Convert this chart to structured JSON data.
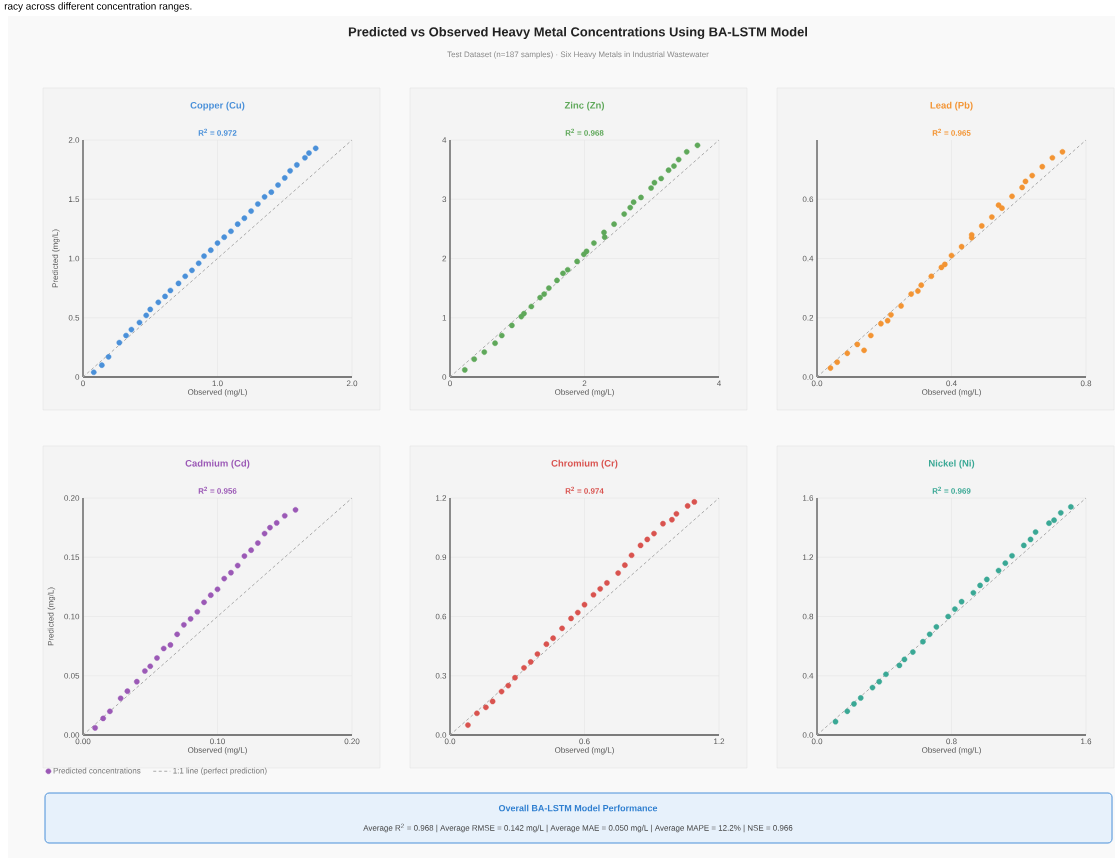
{
  "chart_data": [
    {
      "type": "scatter",
      "title": "Copper (Cu)",
      "subtitle": "R$^{2}$ = 0.972",
      "xlabel": "Observed (mg/L)",
      "ylabel": "Predicted (mg/L)",
      "grid": true,
      "xlim": [
        0,
        2
      ],
      "ylim": [
        0,
        2
      ],
      "xticks": [
        0,
        {
          "value": 1,
          "label": "1.0"
        },
        {
          "value": 2,
          "label": "2.0"
        }
      ],
      "yticks": [
        0,
        0.5,
        {
          "value": 1,
          "label": "1.0"
        },
        1.5,
        {
          "value": 2,
          "label": "2.0"
        }
      ],
      "annotations": [
        "racy across different concentration ranges.",
        "Predicted vs Observed Heavy Metal Concentrations Using BA-LSTM Model",
        "Test Dataset (n=187 samples) · Six Heavy Metals in Industrial Wastewater",
        "Overall BA-LSTM Model Performance",
        "Average R$^{2}$ = 0.968 | Average RMSE = 0.142 mg/L | Average MAE = 0.050 mg/L | Average MAPE = 12.2% | NSE = 0.966"
      ],
      "series": [
        {
          "type": "scatter",
          "marker": "circle",
          "color": "#4a90d9",
          "x": [
            0.08,
            0.14,
            0.19,
            0.27,
            0.32,
            0.36,
            0.42,
            0.47,
            0.5,
            0.56,
            0.61,
            0.65,
            0.71,
            0.76,
            0.81,
            0.86,
            0.9,
            0.95,
            1.0,
            1.05,
            1.1,
            1.15,
            1.2,
            1.25,
            1.3,
            1.35,
            1.4,
            1.45,
            1.5,
            1.54,
            1.59,
            1.65,
            1.68,
            1.73
          ],
          "values": [
            0.04,
            0.1,
            0.17,
            0.29,
            0.35,
            0.4,
            0.46,
            0.52,
            0.57,
            0.63,
            0.68,
            0.73,
            0.79,
            0.85,
            0.9,
            0.96,
            1.02,
            1.07,
            1.13,
            1.18,
            1.23,
            1.29,
            1.34,
            1.4,
            1.46,
            1.52,
            1.56,
            1.62,
            1.68,
            1.74,
            1.79,
            1.85,
            1.89,
            1.93
          ]
        },
        {
          "type": "line",
          "color": "#aaaaaa",
          "line_style": "dashed",
          "x": [
            0,
            2
          ],
          "values": [
            0,
            2
          ]
        }
      ]
    },
    {
      "type": "scatter",
      "title": "Zinc (Zn)",
      "subtitle": "R$^{2}$ = 0.968",
      "xlabel": "Observed (mg/L)",
      "grid": true,
      "xlim": [
        0,
        4
      ],
      "ylim": [
        0,
        4
      ],
      "xticks": [
        0,
        2,
        4
      ],
      "yticks": [
        0,
        1,
        2,
        3,
        4
      ],
      "series": [
        {
          "type": "scatter",
          "marker": "circle",
          "color": "#5fa85a",
          "x": [
            0.22,
            0.36,
            0.51,
            0.67,
            0.77,
            0.92,
            1.06,
            1.1,
            1.21,
            1.34,
            1.4,
            1.47,
            1.59,
            1.68,
            1.75,
            1.89,
            1.99,
            2.03,
            2.14,
            2.29,
            2.3,
            2.44,
            2.59,
            2.68,
            2.73,
            2.84,
            2.99,
            3.04,
            3.14,
            3.25,
            3.33,
            3.4,
            3.52,
            3.68
          ],
          "values": [
            0.12,
            0.3,
            0.42,
            0.57,
            0.7,
            0.87,
            1.02,
            1.07,
            1.19,
            1.34,
            1.4,
            1.5,
            1.63,
            1.75,
            1.81,
            1.95,
            2.07,
            2.12,
            2.26,
            2.44,
            2.36,
            2.58,
            2.75,
            2.86,
            2.95,
            3.03,
            3.19,
            3.28,
            3.35,
            3.49,
            3.56,
            3.67,
            3.8,
            3.91
          ]
        },
        {
          "type": "line",
          "color": "#aaaaaa",
          "line_style": "dashed",
          "x": [
            0,
            4
          ],
          "values": [
            0,
            4
          ]
        }
      ]
    },
    {
      "type": "scatter",
      "title": "Lead (Pb)",
      "subtitle": "R$^{2}$ = 0.965",
      "xlabel": "Observed (mg/L)",
      "grid": true,
      "xlim": [
        0,
        0.8
      ],
      "ylim": [
        0,
        0.8
      ],
      "xticks": [
        {
          "value": 0,
          "label": "0.0"
        },
        0.4,
        0.8
      ],
      "yticks": [
        {
          "value": 0,
          "label": "0.0"
        },
        0.2,
        0.4,
        0.6
      ],
      "series": [
        {
          "type": "scatter",
          "marker": "circle",
          "color": "#f39433",
          "x": [
            0.04,
            0.06,
            0.09,
            0.12,
            0.14,
            0.16,
            0.19,
            0.21,
            0.22,
            0.25,
            0.28,
            0.3,
            0.31,
            0.34,
            0.37,
            0.38,
            0.4,
            0.43,
            0.46,
            0.46,
            0.49,
            0.52,
            0.54,
            0.55,
            0.58,
            0.61,
            0.62,
            0.64,
            0.67,
            0.7,
            0.73
          ],
          "values": [
            0.03,
            0.05,
            0.08,
            0.11,
            0.09,
            0.14,
            0.18,
            0.19,
            0.21,
            0.24,
            0.28,
            0.29,
            0.31,
            0.34,
            0.37,
            0.38,
            0.41,
            0.44,
            0.47,
            0.48,
            0.51,
            0.54,
            0.58,
            0.57,
            0.61,
            0.64,
            0.66,
            0.68,
            0.71,
            0.74,
            0.76
          ]
        },
        {
          "type": "line",
          "color": "#aaaaaa",
          "line_style": "dashed",
          "x": [
            0,
            0.8
          ],
          "values": [
            0,
            0.8
          ]
        }
      ]
    },
    {
      "type": "scatter",
      "title": "Cadmium (Cd)",
      "subtitle": "R$^{2}$ = 0.956",
      "xlabel": "Observed (mg/L)",
      "ylabel": "Predicted (mg/L)",
      "grid": true,
      "legend": "bottom",
      "xlim": [
        0,
        0.2
      ],
      "ylim": [
        0,
        0.2
      ],
      "xticks": [
        {
          "value": 0,
          "label": "0.00"
        },
        {
          "value": 0.1,
          "label": "0.10"
        },
        {
          "value": 0.2,
          "label": "0.20"
        }
      ],
      "yticks": [
        {
          "value": 0,
          "label": "0.00"
        },
        0.05,
        {
          "value": 0.1,
          "label": "0.10"
        },
        0.15,
        {
          "value": 0.2,
          "label": "0.20"
        }
      ],
      "series": [
        {
          "type": "scatter",
          "marker": "circle",
          "name": "Predicted concentrations",
          "color": "#9b59b6",
          "x": [
            0.009,
            0.015,
            0.02,
            0.028,
            0.033,
            0.04,
            0.046,
            0.05,
            0.055,
            0.06,
            0.065,
            0.07,
            0.075,
            0.08,
            0.085,
            0.09,
            0.095,
            0.1,
            0.105,
            0.11,
            0.115,
            0.12,
            0.125,
            0.13,
            0.135,
            0.139,
            0.144,
            0.15,
            0.158
          ],
          "values": [
            0.006,
            0.014,
            0.02,
            0.031,
            0.037,
            0.045,
            0.054,
            0.058,
            0.065,
            0.073,
            0.076,
            0.085,
            0.093,
            0.098,
            0.104,
            0.112,
            0.118,
            0.123,
            0.132,
            0.137,
            0.143,
            0.151,
            0.156,
            0.162,
            0.17,
            0.175,
            0.179,
            0.185,
            0.19
          ]
        },
        {
          "type": "line",
          "name": "1:1 line (perfect prediction)",
          "color": "#aaaaaa",
          "line_style": "dashed",
          "x": [
            0,
            0.2
          ],
          "values": [
            0,
            0.2
          ]
        }
      ]
    },
    {
      "type": "scatter",
      "title": "Chromium (Cr)",
      "subtitle": "R$^{2}$ = 0.974",
      "xlabel": "Observed (mg/L)",
      "grid": true,
      "xlim": [
        0,
        1.2
      ],
      "ylim": [
        0,
        1.2
      ],
      "xticks": [
        {
          "value": 0,
          "label": "0.0"
        },
        0.6,
        1.2
      ],
      "yticks": [
        {
          "value": 0,
          "label": "0.0"
        },
        0.3,
        0.6,
        0.9,
        1.2
      ],
      "series": [
        {
          "type": "scatter",
          "marker": "circle",
          "color": "#d9534f",
          "x": [
            0.08,
            0.12,
            0.16,
            0.19,
            0.23,
            0.26,
            0.29,
            0.33,
            0.36,
            0.39,
            0.43,
            0.46,
            0.5,
            0.54,
            0.57,
            0.6,
            0.64,
            0.67,
            0.7,
            0.75,
            0.78,
            0.81,
            0.85,
            0.88,
            0.91,
            0.95,
            0.99,
            1.01,
            1.06,
            1.09
          ],
          "values": [
            0.05,
            0.11,
            0.14,
            0.17,
            0.22,
            0.25,
            0.29,
            0.34,
            0.37,
            0.41,
            0.46,
            0.49,
            0.54,
            0.59,
            0.62,
            0.66,
            0.71,
            0.74,
            0.77,
            0.82,
            0.86,
            0.91,
            0.96,
            0.99,
            1.02,
            1.07,
            1.09,
            1.12,
            1.16,
            1.18
          ]
        },
        {
          "type": "line",
          "color": "#aaaaaa",
          "line_style": "dashed",
          "x": [
            0,
            1.2
          ],
          "values": [
            0,
            1.2
          ]
        }
      ]
    },
    {
      "type": "scatter",
      "title": "Nickel (Ni)",
      "subtitle": "R$^{2}$ = 0.969",
      "xlabel": "Observed (mg/L)",
      "grid": true,
      "xlim": [
        0,
        1.6
      ],
      "ylim": [
        0,
        1.6
      ],
      "xticks": [
        {
          "value": 0,
          "label": "0.0"
        },
        0.8,
        1.6
      ],
      "yticks": [
        {
          "value": 0,
          "label": "0.0"
        },
        0.4,
        0.8,
        1.2,
        1.6
      ],
      "series": [
        {
          "type": "scatter",
          "marker": "circle",
          "color": "#3aa895",
          "x": [
            0.11,
            0.18,
            0.22,
            0.26,
            0.33,
            0.37,
            0.41,
            0.49,
            0.52,
            0.57,
            0.63,
            0.67,
            0.71,
            0.78,
            0.82,
            0.86,
            0.93,
            0.97,
            1.01,
            1.08,
            1.12,
            1.16,
            1.23,
            1.27,
            1.3,
            1.38,
            1.41,
            1.45,
            1.51
          ],
          "values": [
            0.09,
            0.16,
            0.21,
            0.25,
            0.32,
            0.36,
            0.41,
            0.47,
            0.51,
            0.56,
            0.63,
            0.68,
            0.73,
            0.8,
            0.85,
            0.9,
            0.96,
            1.01,
            1.05,
            1.11,
            1.16,
            1.21,
            1.28,
            1.32,
            1.37,
            1.43,
            1.45,
            1.5,
            1.54
          ]
        },
        {
          "type": "line",
          "color": "#aaaaaa",
          "line_style": "dashed",
          "x": [
            0,
            1.6
          ],
          "values": [
            0,
            1.6
          ]
        }
      ]
    }
  ]
}
